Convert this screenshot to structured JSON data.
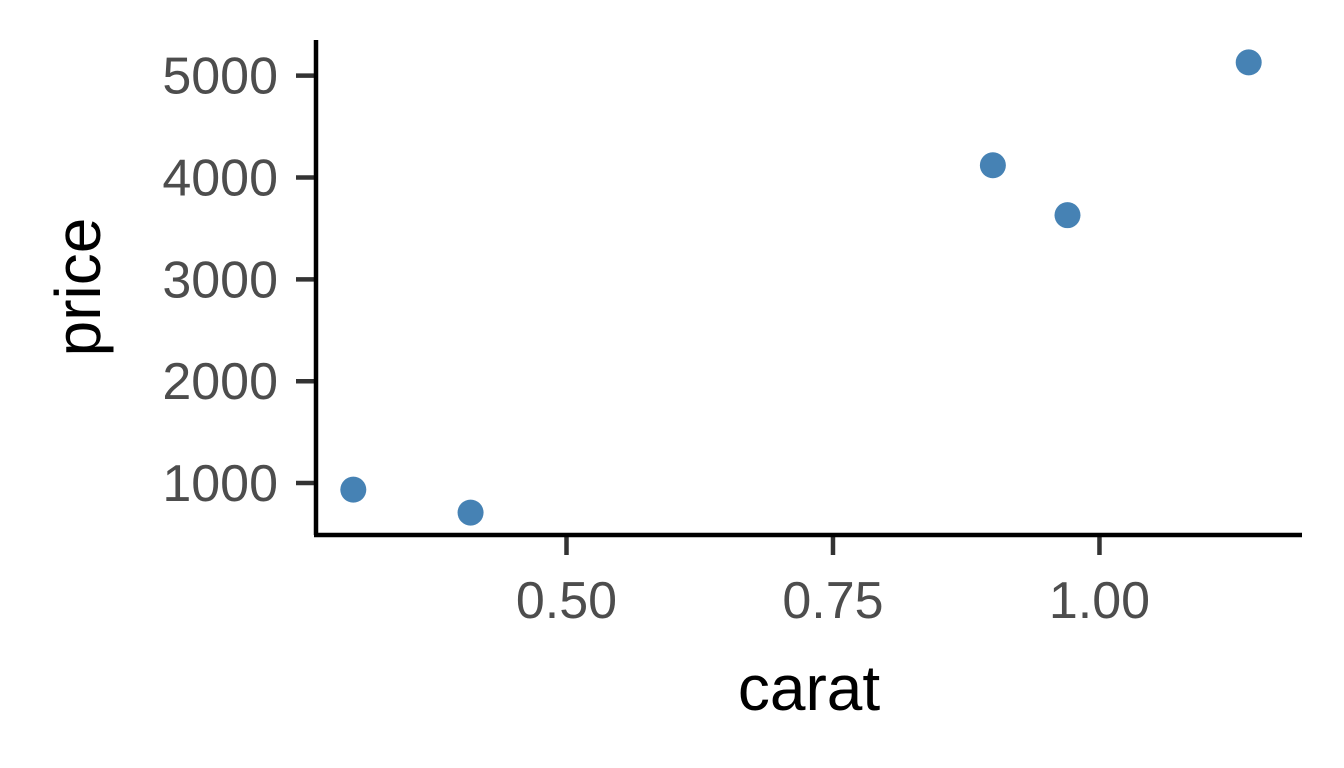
{
  "chart_data": {
    "type": "scatter",
    "title": "",
    "xlabel": "carat",
    "ylabel": "price",
    "x": [
      0.3,
      0.41,
      0.9,
      0.97,
      1.14
    ],
    "y": [
      935,
      710,
      4120,
      3630,
      5130
    ],
    "xlim": [
      0.265,
      1.19
    ],
    "ylim": [
      490,
      5350
    ],
    "x_ticks": [
      0.5,
      0.75,
      1.0
    ],
    "x_tick_labels": [
      "0.50",
      "0.75",
      "1.00"
    ],
    "y_ticks": [
      1000,
      2000,
      3000,
      4000,
      5000
    ],
    "y_tick_labels": [
      "1000",
      "2000",
      "3000",
      "4000",
      "5000"
    ],
    "grid": false,
    "legend": "none",
    "point_color": "#4682b4",
    "axis_color": "#000000",
    "tick_label_color": "#4d4d4d"
  }
}
